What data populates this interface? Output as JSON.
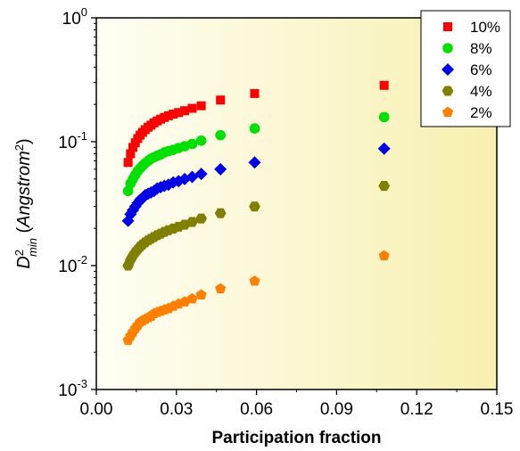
{
  "chart_data": {
    "type": "scatter",
    "xlabel": "Participation fraction",
    "ylabel": {
      "base": "D",
      "sup": "2",
      "sub": "min",
      "unit_open": " (",
      "unit": "Angstrom",
      "unit_sup": "2",
      "unit_close": ")"
    },
    "xlim": [
      0.0,
      0.15
    ],
    "ylim": [
      0.001,
      1
    ],
    "yscale": "log",
    "x_ticks": [
      {
        "value": 0.0,
        "label": "0.00"
      },
      {
        "value": 0.03,
        "label": "0.03"
      },
      {
        "value": 0.06,
        "label": "0.06"
      },
      {
        "value": 0.09,
        "label": "0.09"
      },
      {
        "value": 0.12,
        "label": "0.12"
      },
      {
        "value": 0.15,
        "label": "0.15"
      }
    ],
    "y_ticks": [
      {
        "value": 0.001,
        "base": "10",
        "exp": "-3"
      },
      {
        "value": 0.01,
        "base": "10",
        "exp": "-2"
      },
      {
        "value": 0.1,
        "base": "10",
        "exp": "-1"
      },
      {
        "value": 1,
        "base": "10",
        "exp": "0"
      }
    ],
    "grid": false,
    "legend_position": "top-right",
    "background_gradient": [
      "#fffef4",
      "#f7f0b0"
    ],
    "x": [
      0.0119,
      0.0128,
      0.0137,
      0.0146,
      0.0155,
      0.0164,
      0.0173,
      0.0183,
      0.0194,
      0.0205,
      0.0216,
      0.0228,
      0.0241,
      0.0255,
      0.027,
      0.0288,
      0.0308,
      0.0331,
      0.0359,
      0.0393,
      0.0465,
      0.0593,
      0.1078
    ],
    "series": [
      {
        "name": "10%",
        "marker": "square",
        "color": "#ff0000",
        "values": [
          0.068,
          0.08,
          0.09,
          0.098,
          0.106,
          0.113,
          0.119,
          0.125,
          0.131,
          0.136,
          0.142,
          0.147,
          0.152,
          0.157,
          0.162,
          0.167,
          0.172,
          0.178,
          0.186,
          0.195,
          0.217,
          0.245,
          0.285
        ]
      },
      {
        "name": "8%",
        "marker": "circle",
        "color": "#00e000",
        "values": [
          0.04,
          0.046,
          0.05,
          0.054,
          0.058,
          0.061,
          0.064,
          0.067,
          0.07,
          0.073,
          0.075,
          0.077,
          0.079,
          0.082,
          0.084,
          0.086,
          0.089,
          0.092,
          0.096,
          0.102,
          0.113,
          0.128,
          0.158
        ]
      },
      {
        "name": "6%",
        "marker": "diamond",
        "color": "#0000e6",
        "values": [
          0.023,
          0.026,
          0.028,
          0.03,
          0.032,
          0.034,
          0.035,
          0.037,
          0.038,
          0.039,
          0.04,
          0.042,
          0.043,
          0.044,
          0.045,
          0.047,
          0.048,
          0.05,
          0.052,
          0.055,
          0.06,
          0.068,
          0.088
        ]
      },
      {
        "name": "4%",
        "marker": "hexagon",
        "color": "#808000",
        "values": [
          0.01,
          0.0111,
          0.012,
          0.0128,
          0.0135,
          0.0142,
          0.0148,
          0.0154,
          0.016,
          0.0165,
          0.017,
          0.0176,
          0.0181,
          0.0187,
          0.0193,
          0.0199,
          0.0206,
          0.0214,
          0.0225,
          0.024,
          0.0265,
          0.03,
          0.044
        ]
      },
      {
        "name": "2%",
        "marker": "pentagon",
        "color": "#ff8000",
        "values": [
          0.0025,
          0.0027,
          0.0029,
          0.0031,
          0.0033,
          0.0035,
          0.0036,
          0.0037,
          0.0038,
          0.0039,
          0.0041,
          0.0042,
          0.0043,
          0.0044,
          0.0045,
          0.0047,
          0.0049,
          0.0051,
          0.0054,
          0.0058,
          0.0065,
          0.0075,
          0.012
        ]
      }
    ]
  }
}
